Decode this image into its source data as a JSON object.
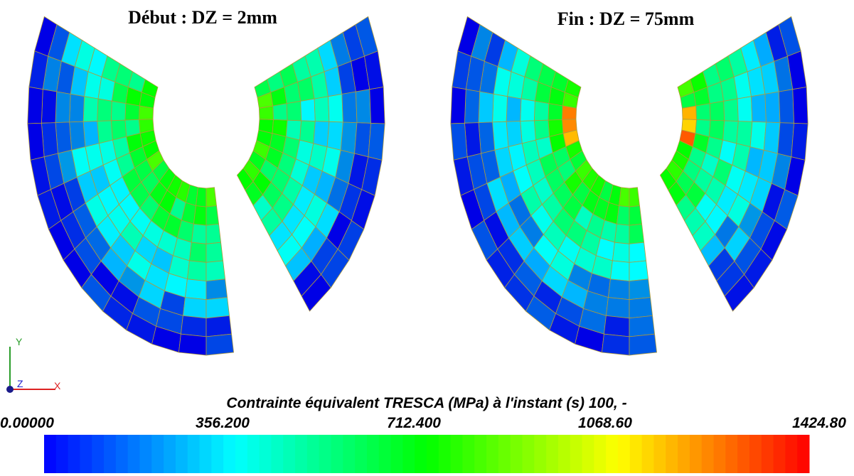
{
  "titles": [
    "Début : DZ = 2mm",
    "Fin : DZ = 75mm"
  ],
  "triad": {
    "y": "Y",
    "z": "Z",
    "x": "X"
  },
  "colorbar": {
    "title": "Contrainte équivalent TRESCA (MPa) à l'instant (s) 100, -",
    "lim": [
      0,
      1424.8
    ],
    "ticks": [
      {
        "value": 0,
        "label": "0.00000"
      },
      {
        "value": 356.2,
        "label": "356.200"
      },
      {
        "value": 712.4,
        "label": "712.400"
      },
      {
        "value": 1068.6,
        "label": "1068.60"
      },
      {
        "value": 1424.8,
        "label": "1424.80"
      }
    ]
  }
}
